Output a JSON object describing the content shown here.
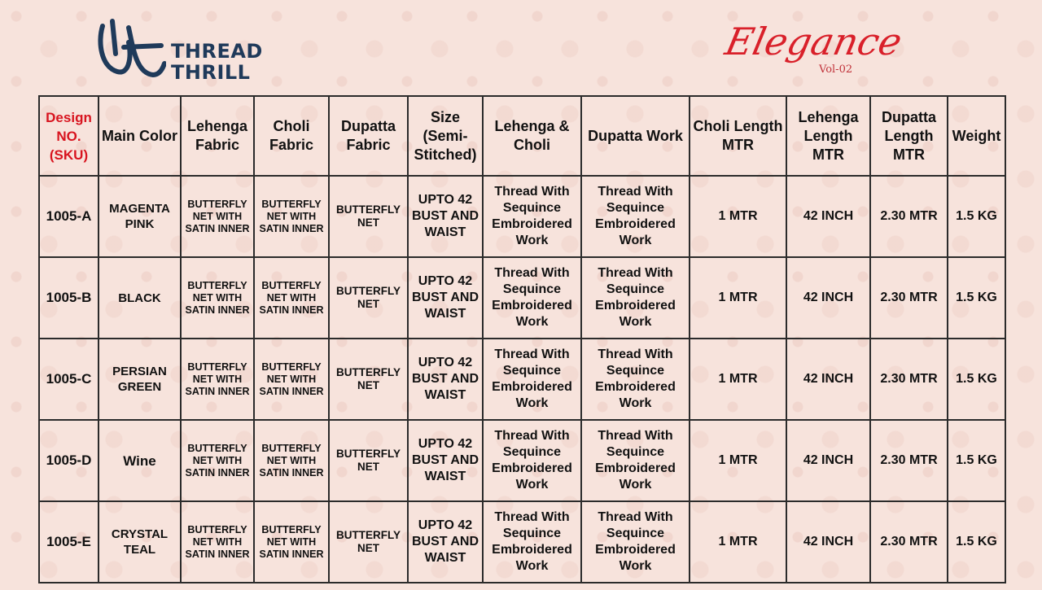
{
  "brand": {
    "logo_line1": "THREAD",
    "logo_line2": "THRILL",
    "logo_mark": "tt-monogram-icon",
    "color": "#1f3a5a"
  },
  "collection": {
    "title": "Elegance",
    "volume": "Vol-02",
    "color": "#d9202a"
  },
  "table": {
    "headers": [
      "Design NO. (SKU)",
      "Main Color",
      "Lehenga Fabric",
      "Choli Fabric",
      "Dupatta Fabric",
      "Size (Semi-Stitched)",
      "Lehenga & Choli",
      "Dupatta Work",
      "Choli Length MTR",
      "Lehenga Length MTR",
      "Dupatta Length MTR",
      "Weight"
    ],
    "rows": [
      {
        "sku": "1005-A",
        "color": "MAGENTA PINK",
        "lehenga_fabric": "BUTTERFLY NET WITH SATIN INNER",
        "choli_fabric": "BUTTERFLY NET WITH SATIN INNER",
        "dupatta_fabric": "BUTTERFLY NET",
        "size": "UPTO 42 BUST AND WAIST",
        "lehenga_choli_work": "Thread With Sequince Embroidered Work",
        "dupatta_work": "Thread With Sequince Embroidered Work",
        "choli_length": "1 MTR",
        "lehenga_length": "42 INCH",
        "dupatta_length": "2.30 MTR",
        "weight": "1.5 KG"
      },
      {
        "sku": "1005-B",
        "color": "BLACK",
        "lehenga_fabric": "BUTTERFLY NET WITH SATIN INNER",
        "choli_fabric": "BUTTERFLY NET WITH SATIN INNER",
        "dupatta_fabric": "BUTTERFLY NET",
        "size": "UPTO 42 BUST AND WAIST",
        "lehenga_choli_work": "Thread With Sequince Embroidered Work",
        "dupatta_work": "Thread With Sequince Embroidered Work",
        "choli_length": "1 MTR",
        "lehenga_length": "42 INCH",
        "dupatta_length": "2.30 MTR",
        "weight": "1.5 KG"
      },
      {
        "sku": "1005-C",
        "color": "PERSIAN GREEN",
        "lehenga_fabric": "BUTTERFLY NET WITH SATIN INNER",
        "choli_fabric": "BUTTERFLY NET WITH SATIN INNER",
        "dupatta_fabric": "BUTTERFLY NET",
        "size": "UPTO 42 BUST AND WAIST",
        "lehenga_choli_work": "Thread With Sequince Embroidered Work",
        "dupatta_work": "Thread With Sequince Embroidered Work",
        "choli_length": "1 MTR",
        "lehenga_length": "42 INCH",
        "dupatta_length": "2.30 MTR",
        "weight": "1.5 KG"
      },
      {
        "sku": "1005-D",
        "color": "Wine",
        "lehenga_fabric": "BUTTERFLY NET WITH SATIN INNER",
        "choli_fabric": "BUTTERFLY NET WITH SATIN INNER",
        "dupatta_fabric": "BUTTERFLY NET",
        "size": "UPTO 42 BUST AND WAIST",
        "lehenga_choli_work": "Thread With Sequince Embroidered Work",
        "dupatta_work": "Thread With Sequince Embroidered Work",
        "choli_length": "1 MTR",
        "lehenga_length": "42 INCH",
        "dupatta_length": "2.30 MTR",
        "weight": "1.5 KG"
      },
      {
        "sku": "1005-E",
        "color": "CRYSTAL TEAL",
        "lehenga_fabric": "BUTTERFLY NET WITH SATIN INNER",
        "choli_fabric": "BUTTERFLY NET WITH SATIN INNER",
        "dupatta_fabric": "BUTTERFLY NET",
        "size": "UPTO 42 BUST AND WAIST",
        "lehenga_choli_work": "Thread With Sequince Embroidered Work",
        "dupatta_work": "Thread With Sequince Embroidered Work",
        "choli_length": "1 MTR",
        "lehenga_length": "42 INCH",
        "dupatta_length": "2.30 MTR",
        "weight": "1.5 KG"
      }
    ],
    "sku_color": "#d8141f",
    "border_color": "#2b2b2b"
  }
}
